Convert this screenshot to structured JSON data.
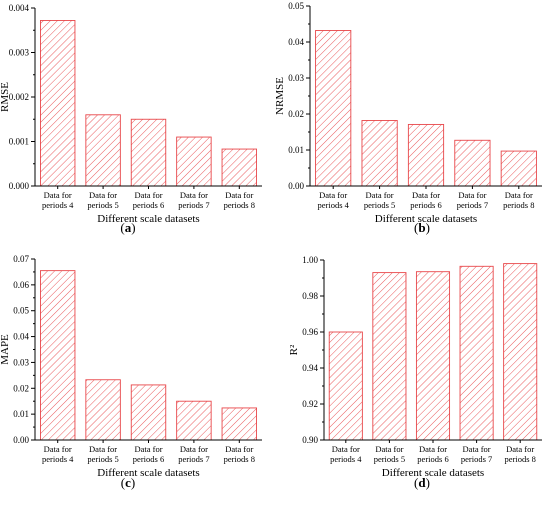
{
  "figure": {
    "hatch_color": "#e8474a",
    "axis_color": "#000000"
  },
  "chart_data": [
    {
      "type": "bar",
      "panel_label": "a",
      "categories": [
        [
          "Data for",
          "periods 4"
        ],
        [
          "Data for",
          "periods 5"
        ],
        [
          "Data for",
          "periods 6"
        ],
        [
          "Data for",
          "periods 7"
        ],
        [
          "Data for",
          "periods 8"
        ]
      ],
      "values": [
        0.00372,
        0.0016,
        0.0015,
        0.0011,
        0.00083
      ],
      "xlabel": "Different scale datasets",
      "ylabel": "RMSE",
      "ylim": [
        0,
        0.004
      ],
      "yticks": [
        0.0,
        0.001,
        0.002,
        0.003,
        0.004
      ],
      "ytick_labels": [
        "0.000",
        "0.001",
        "0.002",
        "0.003",
        "0.004"
      ],
      "grid": false,
      "bar_style": "hatched"
    },
    {
      "type": "bar",
      "panel_label": "b",
      "categories": [
        [
          "Data for",
          "periods 4"
        ],
        [
          "Data for",
          "periods 5"
        ],
        [
          "Data for",
          "periods 6"
        ],
        [
          "Data for",
          "periods 7"
        ],
        [
          "Data for",
          "periods 8"
        ]
      ],
      "values": [
        0.0432,
        0.0182,
        0.0171,
        0.0127,
        0.0097
      ],
      "xlabel": "Different scale datasets",
      "ylabel": "NRMSE",
      "ylim": [
        0,
        0.05
      ],
      "yticks": [
        0.0,
        0.01,
        0.02,
        0.03,
        0.04,
        0.05
      ],
      "ytick_labels": [
        "0.00",
        "0.01",
        "0.02",
        "0.03",
        "0.04",
        "0.05"
      ],
      "grid": false,
      "bar_style": "hatched"
    },
    {
      "type": "bar",
      "panel_label": "c",
      "categories": [
        [
          "Data for",
          "periods 4"
        ],
        [
          "Data for",
          "periods 5"
        ],
        [
          "Data for",
          "periods 6"
        ],
        [
          "Data for",
          "periods 7"
        ],
        [
          "Data for",
          "periods 8"
        ]
      ],
      "values": [
        0.0655,
        0.0233,
        0.0213,
        0.015,
        0.0124
      ],
      "xlabel": "Different scale datasets",
      "ylabel": "MAPE",
      "ylim": [
        0,
        0.07
      ],
      "yticks": [
        0.0,
        0.01,
        0.02,
        0.03,
        0.04,
        0.05,
        0.06,
        0.07
      ],
      "ytick_labels": [
        "0.00",
        "0.01",
        "0.02",
        "0.03",
        "0.04",
        "0.05",
        "0.06",
        "0.07"
      ],
      "grid": false,
      "bar_style": "hatched"
    },
    {
      "type": "bar",
      "panel_label": "d",
      "categories": [
        [
          "Data for",
          "periods 4"
        ],
        [
          "Data for",
          "periods 5"
        ],
        [
          "Data for",
          "periods 6"
        ],
        [
          "Data for",
          "periods 7"
        ],
        [
          "Data for",
          "periods 8"
        ]
      ],
      "values": [
        0.96,
        0.993,
        0.9935,
        0.9965,
        0.998
      ],
      "xlabel": "Different scale datasets",
      "ylabel": "R²",
      "ylim": [
        0.9,
        1.0
      ],
      "yticks": [
        0.9,
        0.92,
        0.94,
        0.96,
        0.98,
        1.0
      ],
      "ytick_labels": [
        "0.90",
        "0.92",
        "0.94",
        "0.96",
        "0.98",
        "1.00"
      ],
      "grid": false,
      "bar_style": "hatched"
    }
  ]
}
